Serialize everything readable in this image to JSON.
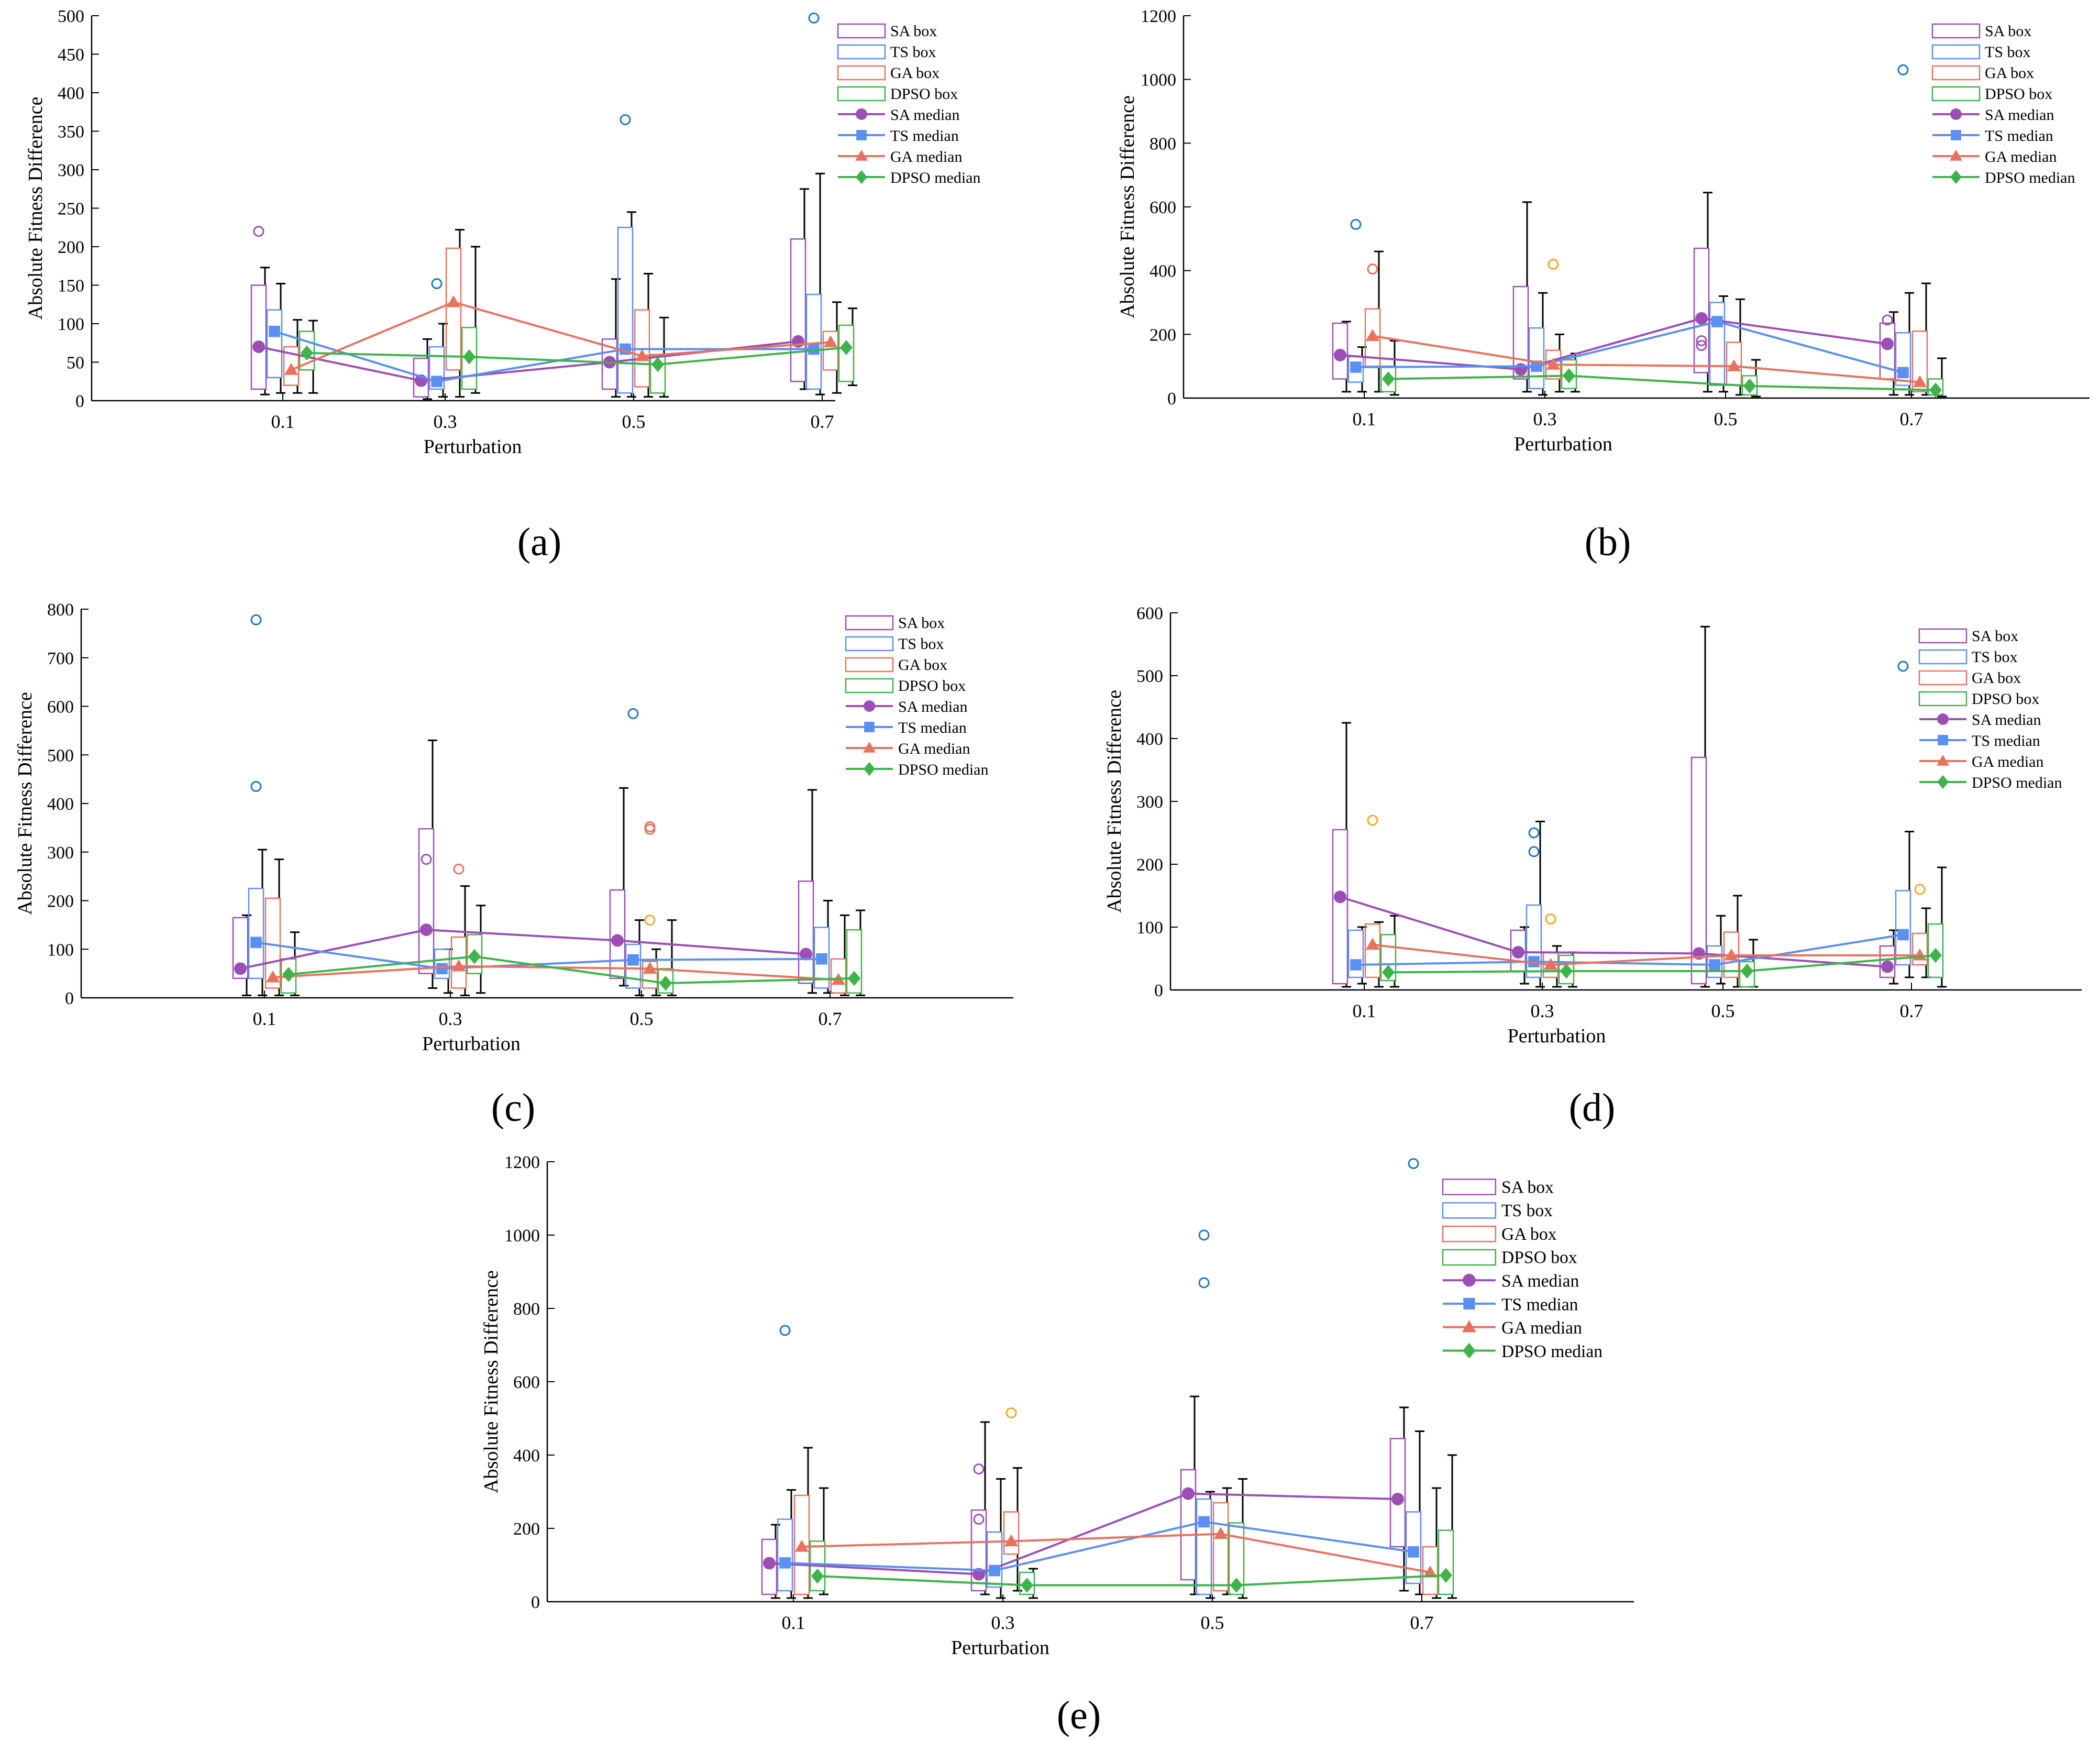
{
  "figure": {
    "x_label": "Perturbation",
    "y_label": "Absolute Fitness Difference",
    "colors": {
      "SA": "#9b4fb4",
      "TS": "#5b8ff0",
      "GA": "#e8725e",
      "DPSO": "#3fb24a",
      "outlier_orange": "#f5a623",
      "outlier_blue": "#1e78c8",
      "whisker": "#000000",
      "axis": "#000000"
    },
    "legend": [
      "SA box",
      "TS box",
      "GA box",
      "DPSO box",
      "SA median",
      "TS median",
      "GA median",
      "DPSO median"
    ]
  },
  "chart_data": [
    {
      "type": "box",
      "caption": "(a)",
      "categories": [
        "0.1",
        "0.3",
        "0.5",
        "0.7"
      ],
      "ylim": [
        0,
        500
      ],
      "yticks": [
        0,
        50,
        100,
        150,
        200,
        250,
        300,
        350,
        400,
        450,
        500
      ],
      "series": [
        {
          "name": "SA",
          "boxes": [
            {
              "q1": 15,
              "q3": 150,
              "wlo": 8,
              "whi": 173,
              "med": 70
            },
            {
              "q1": 5,
              "q3": 55,
              "wlo": 2,
              "whi": 80,
              "med": 26
            },
            {
              "q1": 15,
              "q3": 80,
              "wlo": 5,
              "whi": 158,
              "med": 50
            },
            {
              "q1": 25,
              "q3": 210,
              "wlo": 15,
              "whi": 275,
              "med": 77
            }
          ],
          "outliers": [
            [
              0,
              220,
              "SA"
            ]
          ]
        },
        {
          "name": "TS",
          "boxes": [
            {
              "q1": 30,
              "q3": 118,
              "wlo": 10,
              "whi": 152,
              "med": 90
            },
            {
              "q1": 15,
              "q3": 70,
              "wlo": 5,
              "whi": 100,
              "med": 25
            },
            {
              "q1": 10,
              "q3": 225,
              "wlo": 5,
              "whi": 245,
              "med": 67
            },
            {
              "q1": 15,
              "q3": 138,
              "wlo": 8,
              "whi": 295,
              "med": 67
            }
          ],
          "outliers": [
            [
              1,
              152,
              "outlier_blue"
            ],
            [
              2,
              365,
              "outlier_blue"
            ],
            [
              3,
              497,
              "outlier_blue"
            ]
          ]
        },
        {
          "name": "GA",
          "boxes": [
            {
              "q1": 20,
              "q3": 70,
              "wlo": 10,
              "whi": 105,
              "med": 40
            },
            {
              "q1": 40,
              "q3": 198,
              "wlo": 5,
              "whi": 222,
              "med": 128
            },
            {
              "q1": 18,
              "q3": 118,
              "wlo": 5,
              "whi": 165,
              "med": 58
            },
            {
              "q1": 40,
              "q3": 90,
              "wlo": 10,
              "whi": 128,
              "med": 76
            }
          ],
          "outliers": []
        },
        {
          "name": "DPSO",
          "boxes": [
            {
              "q1": 40,
              "q3": 90,
              "wlo": 10,
              "whi": 104,
              "med": 62
            },
            {
              "q1": 15,
              "q3": 95,
              "wlo": 10,
              "whi": 200,
              "med": 57
            },
            {
              "q1": 10,
              "q3": 60,
              "wlo": 5,
              "whi": 108,
              "med": 47
            },
            {
              "q1": 25,
              "q3": 98,
              "wlo": 20,
              "whi": 120,
              "med": 69
            }
          ],
          "outliers": []
        }
      ]
    },
    {
      "type": "box",
      "caption": "(b)",
      "categories": [
        "0.1",
        "0.3",
        "0.5",
        "0.7"
      ],
      "ylim": [
        0,
        1200
      ],
      "yticks": [
        0,
        200,
        400,
        600,
        800,
        1000,
        1200
      ],
      "series": [
        {
          "name": "SA",
          "boxes": [
            {
              "q1": 60,
              "q3": 235,
              "wlo": 20,
              "whi": 240,
              "med": 135
            },
            {
              "q1": 60,
              "q3": 350,
              "wlo": 20,
              "whi": 615,
              "med": 90
            },
            {
              "q1": 80,
              "q3": 470,
              "wlo": 20,
              "whi": 645,
              "med": 250
            },
            {
              "q1": 60,
              "q3": 235,
              "wlo": 10,
              "whi": 270,
              "med": 170
            }
          ],
          "outliers": [
            [
              2,
              180,
              "SA"
            ],
            [
              2,
              165,
              "SA"
            ],
            [
              3,
              245,
              "SA"
            ]
          ]
        },
        {
          "name": "TS",
          "boxes": [
            {
              "q1": 50,
              "q3": 130,
              "wlo": 20,
              "whi": 160,
              "med": 97
            },
            {
              "q1": 30,
              "q3": 220,
              "wlo": 10,
              "whi": 330,
              "med": 100
            },
            {
              "q1": 40,
              "q3": 300,
              "wlo": 20,
              "whi": 320,
              "med": 240
            },
            {
              "q1": 40,
              "q3": 205,
              "wlo": 10,
              "whi": 330,
              "med": 80
            }
          ],
          "outliers": [
            [
              0,
              545,
              "outlier_blue"
            ],
            [
              3,
              1030,
              "outlier_blue"
            ]
          ]
        },
        {
          "name": "GA",
          "boxes": [
            {
              "q1": 100,
              "q3": 280,
              "wlo": 20,
              "whi": 460,
              "med": 195
            },
            {
              "q1": 60,
              "q3": 150,
              "wlo": 20,
              "whi": 200,
              "med": 105
            },
            {
              "q1": 40,
              "q3": 175,
              "wlo": 10,
              "whi": 310,
              "med": 100
            },
            {
              "q1": 20,
              "q3": 210,
              "wlo": 10,
              "whi": 360,
              "med": 50
            }
          ],
          "outliers": [
            [
              0,
              405,
              "GA"
            ],
            [
              1,
              420,
              "outlier_orange"
            ]
          ]
        },
        {
          "name": "DPSO",
          "boxes": [
            {
              "q1": 20,
              "q3": 100,
              "wlo": 10,
              "whi": 180,
              "med": 60
            },
            {
              "q1": 30,
              "q3": 120,
              "wlo": 20,
              "whi": 140,
              "med": 70
            },
            {
              "q1": 10,
              "q3": 70,
              "wlo": 5,
              "whi": 120,
              "med": 38
            },
            {
              "q1": 10,
              "q3": 60,
              "wlo": 5,
              "whi": 125,
              "med": 25
            }
          ],
          "outliers": []
        }
      ]
    },
    {
      "type": "box",
      "caption": "(c)",
      "categories": [
        "0.1",
        "0.3",
        "0.5",
        "0.7"
      ],
      "ylim": [
        0,
        800
      ],
      "yticks": [
        0,
        100,
        200,
        300,
        400,
        500,
        600,
        700,
        800
      ],
      "series": [
        {
          "name": "SA",
          "boxes": [
            {
              "q1": 40,
              "q3": 165,
              "wlo": 5,
              "whi": 170,
              "med": 60
            },
            {
              "q1": 50,
              "q3": 348,
              "wlo": 20,
              "whi": 530,
              "med": 140
            },
            {
              "q1": 40,
              "q3": 222,
              "wlo": 25,
              "whi": 432,
              "med": 118
            },
            {
              "q1": 30,
              "q3": 240,
              "wlo": 10,
              "whi": 428,
              "med": 90
            }
          ],
          "outliers": [
            [
              1,
              285,
              "SA"
            ]
          ]
        },
        {
          "name": "TS",
          "boxes": [
            {
              "q1": 40,
              "q3": 225,
              "wlo": 5,
              "whi": 305,
              "med": 114
            },
            {
              "q1": 40,
              "q3": 100,
              "wlo": 10,
              "whi": 100,
              "med": 60
            },
            {
              "q1": 20,
              "q3": 110,
              "wlo": 5,
              "whi": 160,
              "med": 78
            },
            {
              "q1": 20,
              "q3": 145,
              "wlo": 10,
              "whi": 200,
              "med": 80
            }
          ],
          "outliers": [
            [
              0,
              778,
              "outlier_blue"
            ],
            [
              0,
              435,
              "outlier_blue"
            ],
            [
              2,
              585,
              "outlier_blue"
            ]
          ]
        },
        {
          "name": "GA",
          "boxes": [
            {
              "q1": 20,
              "q3": 205,
              "wlo": 5,
              "whi": 285,
              "med": 42
            },
            {
              "q1": 20,
              "q3": 125,
              "wlo": 5,
              "whi": 230,
              "med": 65
            },
            {
              "q1": 20,
              "q3": 75,
              "wlo": 5,
              "whi": 100,
              "med": 60
            },
            {
              "q1": 10,
              "q3": 80,
              "wlo": 5,
              "whi": 170,
              "med": 37
            }
          ],
          "outliers": [
            [
              1,
              265,
              "GA"
            ],
            [
              2,
              352,
              "GA"
            ],
            [
              2,
              347,
              "GA"
            ],
            [
              2,
              160,
              "outlier_orange"
            ]
          ]
        },
        {
          "name": "DPSO",
          "boxes": [
            {
              "q1": 10,
              "q3": 80,
              "wlo": 5,
              "whi": 135,
              "med": 48
            },
            {
              "q1": 50,
              "q3": 130,
              "wlo": 10,
              "whi": 190,
              "med": 85
            },
            {
              "q1": 10,
              "q3": 60,
              "wlo": 5,
              "whi": 160,
              "med": 30
            },
            {
              "q1": 10,
              "q3": 140,
              "wlo": 5,
              "whi": 180,
              "med": 40
            }
          ],
          "outliers": []
        }
      ]
    },
    {
      "type": "box",
      "caption": "(d)",
      "categories": [
        "0.1",
        "0.3",
        "0.5",
        "0.7"
      ],
      "ylim": [
        0,
        600
      ],
      "yticks": [
        0,
        100,
        200,
        300,
        400,
        500,
        600
      ],
      "series": [
        {
          "name": "SA",
          "boxes": [
            {
              "q1": 10,
              "q3": 255,
              "wlo": 5,
              "whi": 425,
              "med": 148
            },
            {
              "q1": 30,
              "q3": 95,
              "wlo": 10,
              "whi": 100,
              "med": 60
            },
            {
              "q1": 10,
              "q3": 370,
              "wlo": 5,
              "whi": 578,
              "med": 58
            },
            {
              "q1": 20,
              "q3": 70,
              "wlo": 10,
              "whi": 95,
              "med": 37
            }
          ],
          "outliers": []
        },
        {
          "name": "TS",
          "boxes": [
            {
              "q1": 20,
              "q3": 95,
              "wlo": 10,
              "whi": 100,
              "med": 40
            },
            {
              "q1": 20,
              "q3": 135,
              "wlo": 5,
              "whi": 268,
              "med": 45
            },
            {
              "q1": 20,
              "q3": 70,
              "wlo": 10,
              "whi": 118,
              "med": 40
            },
            {
              "q1": 40,
              "q3": 158,
              "wlo": 20,
              "whi": 252,
              "med": 88
            }
          ],
          "outliers": [
            [
              1,
              250,
              "outlier_blue"
            ],
            [
              1,
              220,
              "outlier_blue"
            ],
            [
              3,
              515,
              "outlier_blue"
            ]
          ]
        },
        {
          "name": "GA",
          "boxes": [
            {
              "q1": 20,
              "q3": 105,
              "wlo": 5,
              "whi": 108,
              "med": 72
            },
            {
              "q1": 20,
              "q3": 60,
              "wlo": 5,
              "whi": 70,
              "med": 40
            },
            {
              "q1": 20,
              "q3": 92,
              "wlo": 5,
              "whi": 150,
              "med": 55
            },
            {
              "q1": 40,
              "q3": 90,
              "wlo": 20,
              "whi": 130,
              "med": 55
            }
          ],
          "outliers": [
            [
              0,
              270,
              "outlier_orange"
            ],
            [
              1,
              113,
              "outlier_orange"
            ],
            [
              3,
              160,
              "outlier_orange"
            ]
          ]
        },
        {
          "name": "DPSO",
          "boxes": [
            {
              "q1": 15,
              "q3": 88,
              "wlo": 5,
              "whi": 118,
              "med": 28
            },
            {
              "q1": 10,
              "q3": 55,
              "wlo": 5,
              "whi": 60,
              "med": 30
            },
            {
              "q1": 5,
              "q3": 45,
              "wlo": 5,
              "whi": 80,
              "med": 30
            },
            {
              "q1": 20,
              "q3": 105,
              "wlo": 5,
              "whi": 195,
              "med": 55
            }
          ],
          "outliers": []
        }
      ]
    },
    {
      "type": "box",
      "caption": "(e)",
      "categories": [
        "0.1",
        "0.3",
        "0.5",
        "0.7"
      ],
      "ylim": [
        0,
        1200
      ],
      "yticks": [
        0,
        200,
        400,
        600,
        800,
        1000,
        1200
      ],
      "series": [
        {
          "name": "SA",
          "boxes": [
            {
              "q1": 20,
              "q3": 170,
              "wlo": 10,
              "whi": 210,
              "med": 105
            },
            {
              "q1": 30,
              "q3": 250,
              "wlo": 20,
              "whi": 490,
              "med": 75
            },
            {
              "q1": 60,
              "q3": 360,
              "wlo": 20,
              "whi": 560,
              "med": 295
            },
            {
              "q1": 150,
              "q3": 445,
              "wlo": 30,
              "whi": 530,
              "med": 280
            }
          ],
          "outliers": [
            [
              1,
              362,
              "SA"
            ],
            [
              1,
              225,
              "SA"
            ]
          ]
        },
        {
          "name": "TS",
          "boxes": [
            {
              "q1": 30,
              "q3": 225,
              "wlo": 10,
              "whi": 305,
              "med": 106
            },
            {
              "q1": 40,
              "q3": 190,
              "wlo": 10,
              "whi": 335,
              "med": 85
            },
            {
              "q1": 20,
              "q3": 280,
              "wlo": 10,
              "whi": 300,
              "med": 218
            },
            {
              "q1": 50,
              "q3": 245,
              "wlo": 20,
              "whi": 465,
              "med": 136
            }
          ],
          "outliers": [
            [
              0,
              740,
              "outlier_blue"
            ],
            [
              2,
              1000,
              "outlier_blue"
            ],
            [
              2,
              870,
              "outlier_blue"
            ],
            [
              3,
              1195,
              "outlier_blue"
            ]
          ]
        },
        {
          "name": "GA",
          "boxes": [
            {
              "q1": 20,
              "q3": 290,
              "wlo": 10,
              "whi": 420,
              "med": 150
            },
            {
              "q1": 130,
              "q3": 245,
              "wlo": 30,
              "whi": 365,
              "med": 165
            },
            {
              "q1": 30,
              "q3": 270,
              "wlo": 20,
              "whi": 310,
              "med": 185
            },
            {
              "q1": 20,
              "q3": 150,
              "wlo": 10,
              "whi": 310,
              "med": 80
            }
          ],
          "outliers": [
            [
              1,
              515,
              "outlier_orange"
            ]
          ]
        },
        {
          "name": "DPSO",
          "boxes": [
            {
              "q1": 30,
              "q3": 165,
              "wlo": 20,
              "whi": 310,
              "med": 70
            },
            {
              "q1": 20,
              "q3": 80,
              "wlo": 10,
              "whi": 90,
              "med": 45
            },
            {
              "q1": 20,
              "q3": 215,
              "wlo": 10,
              "whi": 335,
              "med": 45
            },
            {
              "q1": 20,
              "q3": 195,
              "wlo": 10,
              "whi": 400,
              "med": 72
            }
          ],
          "outliers": []
        }
      ]
    }
  ]
}
